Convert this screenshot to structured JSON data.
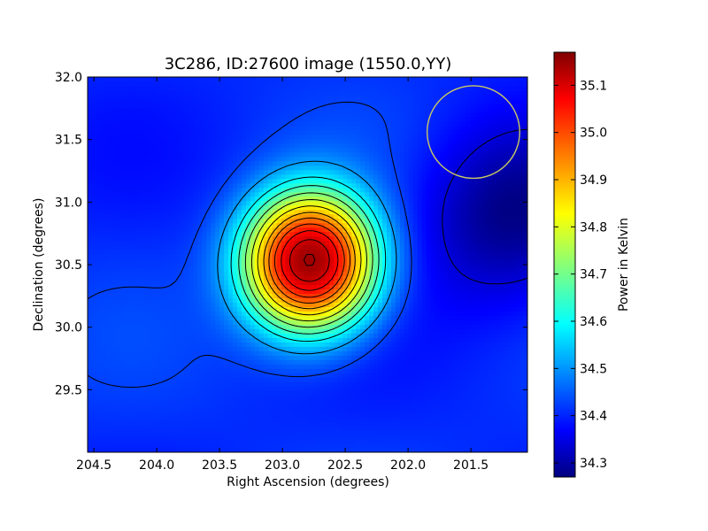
{
  "chart_data": {
    "type": "heatmap",
    "title": "3C286, ID:27600 image (1550.0,YY)",
    "xlabel": "Right Ascension (degrees)",
    "ylabel": "Declination (degrees)",
    "xlim": [
      204.55,
      201.05
    ],
    "ylim": [
      29.0,
      32.0
    ],
    "x_ticks": [
      "204.5",
      "204.0",
      "203.5",
      "203.0",
      "202.5",
      "202.0",
      "201.5"
    ],
    "y_ticks": [
      "29.5",
      "30.0",
      "30.5",
      "31.0",
      "31.5",
      "32.0"
    ],
    "colorbar": {
      "label": "Power in Kelvin",
      "colormap": "jet",
      "range": [
        34.27,
        35.17
      ],
      "ticks": [
        "34.3",
        "34.4",
        "34.5",
        "34.6",
        "34.7",
        "34.8",
        "34.9",
        "35.0",
        "35.1"
      ]
    },
    "peak": {
      "ra": 202.78,
      "dec": 30.52,
      "value": 35.15
    },
    "minimum": {
      "ra": 201.2,
      "dec": 30.9,
      "value": 34.28
    },
    "background_value": 34.42,
    "contour_levels": [
      34.35,
      34.44,
      34.52,
      34.6,
      34.66,
      34.72,
      34.78,
      34.84,
      34.9,
      34.95,
      35.0,
      35.05,
      35.1,
      35.14
    ],
    "beam_circle": {
      "ra": 201.48,
      "dec": 31.56,
      "radius_deg": 0.37,
      "color": "#c8c864"
    },
    "grid": false
  }
}
